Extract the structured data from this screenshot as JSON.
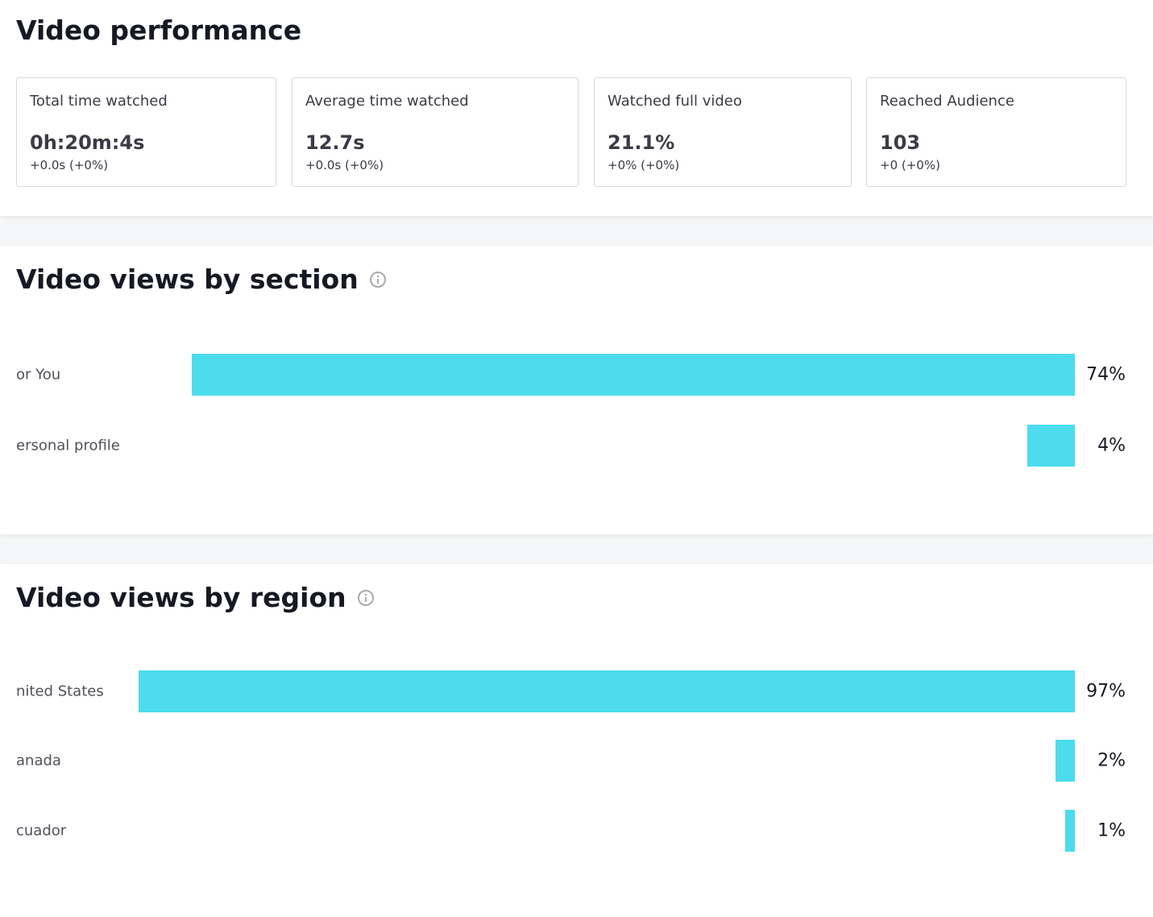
{
  "performance": {
    "title": "Video performance",
    "cards": [
      {
        "label": "Total time watched",
        "value": "0h:20m:4s",
        "change": "+0.0s (+0%)"
      },
      {
        "label": "Average time watched",
        "value": "12.7s",
        "change": "+0.0s (+0%)"
      },
      {
        "label": "Watched full video",
        "value": "21.1%",
        "change": "+0% (+0%)"
      },
      {
        "label": "Reached Audience",
        "value": "103",
        "change": "+0 (+0%)"
      }
    ]
  },
  "chart_data": [
    {
      "type": "bar",
      "title": "Video views by section",
      "color": "#4cdcee",
      "categories": [
        "or You",
        "ersonal profile"
      ],
      "values": [
        74,
        4
      ],
      "value_labels": [
        "74%",
        "4%"
      ]
    },
    {
      "type": "bar",
      "title": "Video views by region",
      "color": "#4cdcee",
      "categories": [
        "nited States",
        "anada",
        "cuador"
      ],
      "values": [
        97,
        2,
        1
      ],
      "value_labels": [
        "97%",
        "2%",
        "1%"
      ]
    }
  ]
}
